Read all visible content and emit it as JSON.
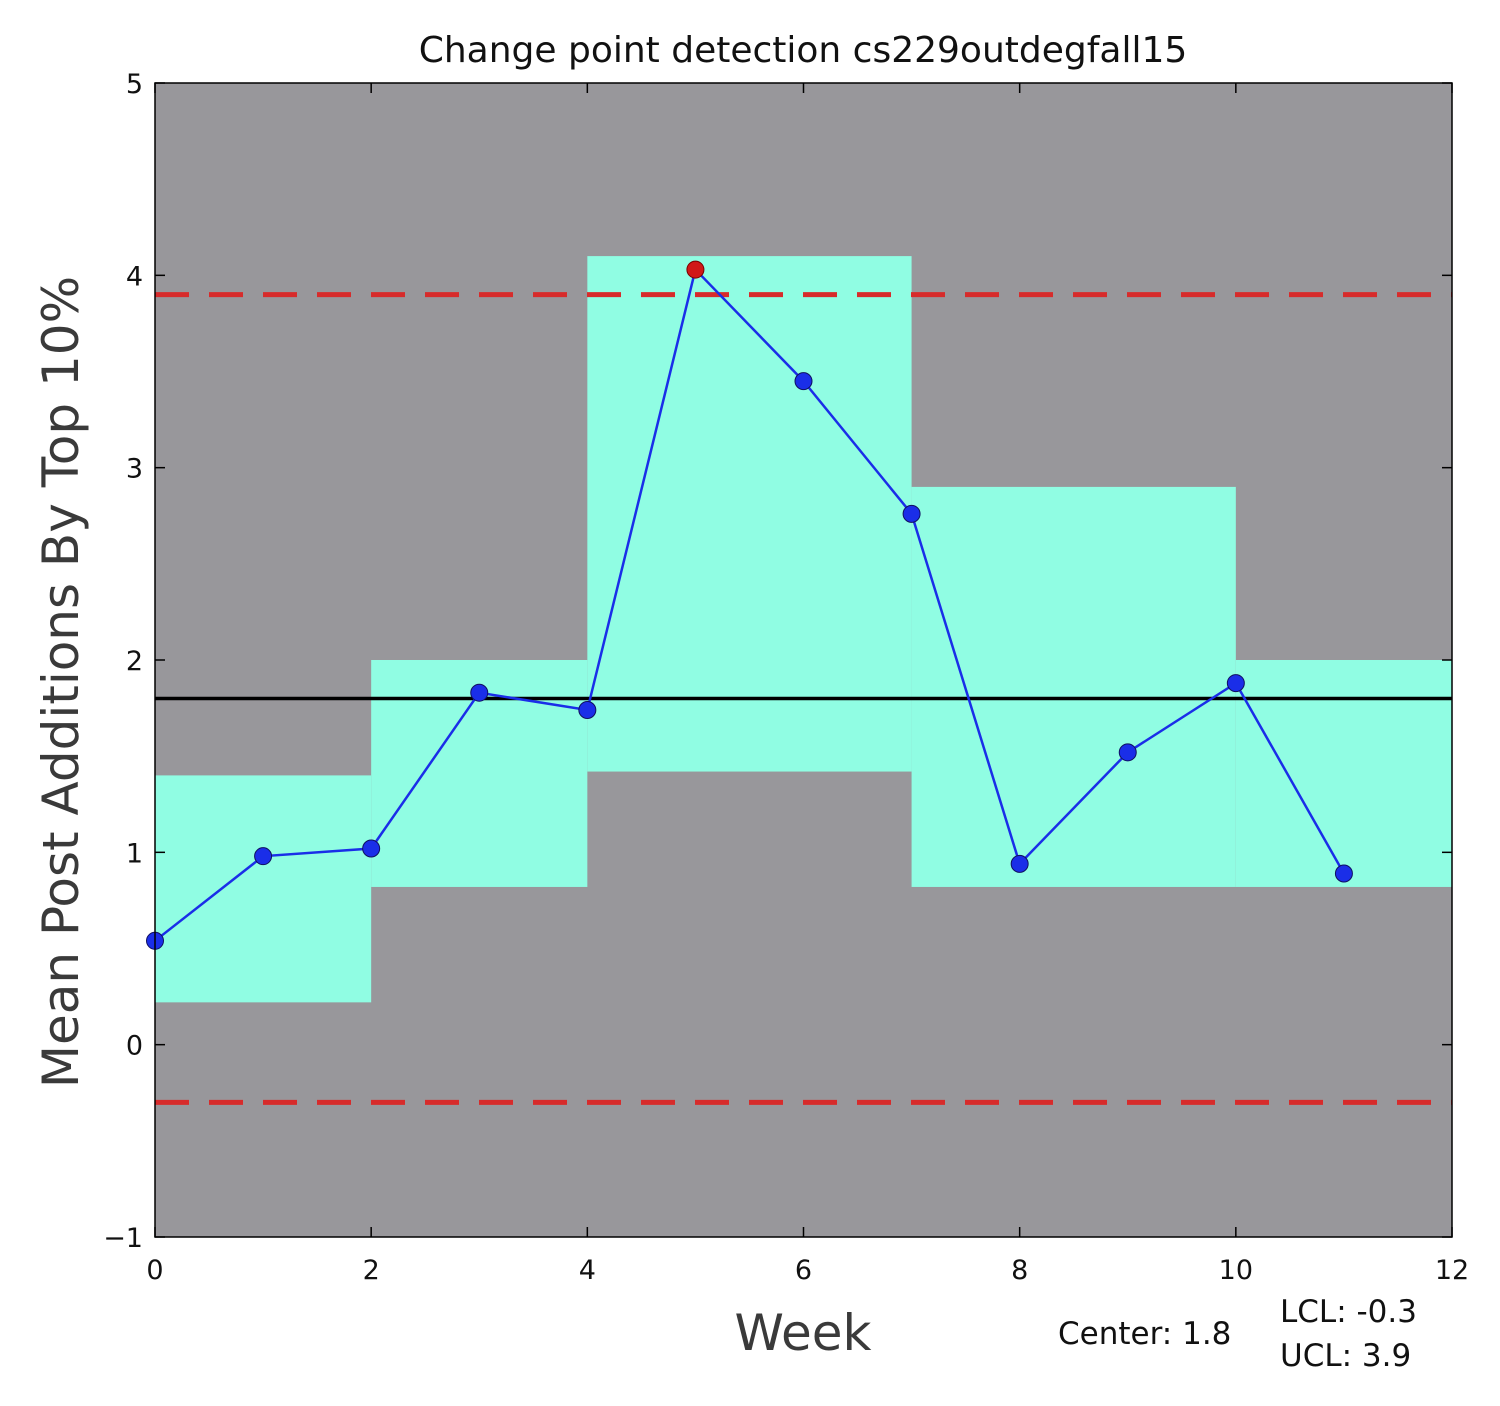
{
  "chart_data": {
    "type": "line",
    "title": "Change point detection cs229outdegfall15",
    "xlabel": "Week",
    "ylabel": "Mean Post Additions By Top 10%",
    "xlim": [
      0,
      12
    ],
    "ylim": [
      -1,
      5
    ],
    "xticks": [
      "0",
      "2",
      "4",
      "6",
      "8",
      "10",
      "12"
    ],
    "yticks": [
      "−1",
      "0",
      "1",
      "2",
      "3",
      "4",
      "5"
    ],
    "grid": false,
    "series": [
      {
        "x": [
          0,
          1,
          2,
          3,
          4,
          5,
          6,
          7,
          8,
          9,
          10,
          11
        ],
        "values": [
          0.54,
          0.98,
          1.02,
          1.83,
          1.74,
          4.03,
          3.45,
          2.76,
          0.94,
          1.52,
          1.88,
          0.89
        ],
        "color": "#1a2ee8",
        "out_of_control_color": "#d01818"
      }
    ],
    "center_line": 1.8,
    "lcl": -0.3,
    "ucl": 3.9,
    "segments": [
      {
        "x_start": 0,
        "x_end": 2,
        "lower": 0.22,
        "upper": 1.4
      },
      {
        "x_start": 2,
        "x_end": 4,
        "lower": 0.82,
        "upper": 2.0
      },
      {
        "x_start": 4,
        "x_end": 7,
        "lower": 1.42,
        "upper": 4.1
      },
      {
        "x_start": 7,
        "x_end": 10,
        "lower": 0.82,
        "upper": 2.9
      },
      {
        "x_start": 10,
        "x_end": 12,
        "lower": 0.82,
        "upper": 2.0
      }
    ],
    "colors": {
      "background": "#98979b",
      "band": "#90fde3",
      "limit_line": "#d72b2b",
      "center_line": "#000000"
    },
    "annotations": {
      "center_text": "Center: 1.8",
      "lcl_text": "LCL: -0.3",
      "ucl_text": "UCL: 3.9"
    }
  }
}
